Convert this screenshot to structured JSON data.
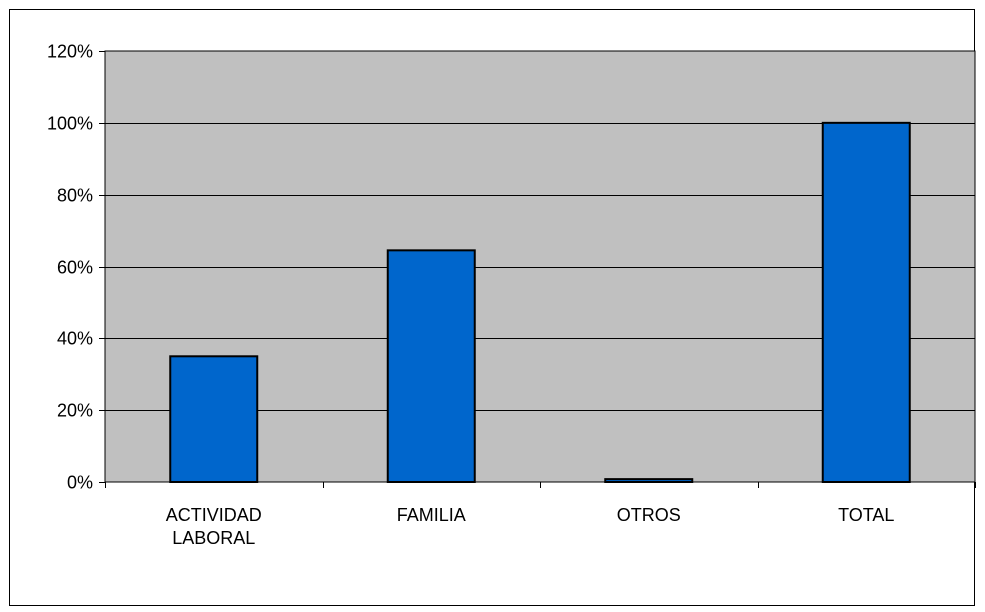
{
  "chart_data": {
    "type": "bar",
    "categories": [
      [
        "ACTIVIDAD",
        "LABORAL"
      ],
      [
        "FAMILIA"
      ],
      [
        "OTROS"
      ],
      [
        "TOTAL"
      ]
    ],
    "values": [
      0.35,
      0.645,
      0.008,
      1.0
    ],
    "title": "",
    "xlabel": "",
    "ylabel": "",
    "ylim": [
      0,
      1.2
    ],
    "yticks": [
      "0%",
      "20%",
      "40%",
      "60%",
      "80%",
      "100%",
      "120%"
    ],
    "grid": true,
    "legend": "none",
    "colors": {
      "bar": "#0066CC",
      "plot_background": "#C0C0C0",
      "gridline": "#000000",
      "border": "#000000"
    }
  }
}
